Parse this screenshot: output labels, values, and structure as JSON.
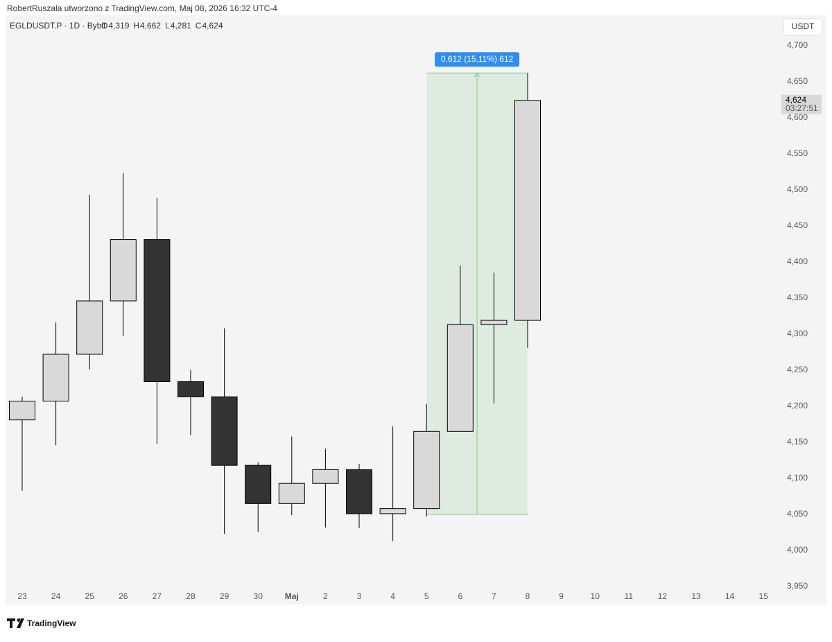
{
  "header": "RobertRuszala utworzono z TradingView.com, Maj 08, 2026 16:32 UTC-4",
  "symbol": "EGLDUSDT.P · 1D · Bybit",
  "ohlc_legend": [
    {
      "key": "O",
      "value": "4,319"
    },
    {
      "key": "H",
      "value": "4,662"
    },
    {
      "key": "L",
      "value": "4,281"
    },
    {
      "key": "C",
      "value": "4,624"
    }
  ],
  "currency": "USDT",
  "last_price_label": "4,624",
  "countdown": "03:27:51",
  "logo": "TradingView",
  "chart_data": {
    "type": "candlestick",
    "categories": [
      "23",
      "24",
      "25",
      "26",
      "27",
      "28",
      "29",
      "30",
      "Maj",
      "2",
      "3",
      "4",
      "5",
      "6",
      "7",
      "8",
      "9",
      "10",
      "11",
      "12",
      "13",
      "14",
      "15"
    ],
    "open": [
      4.181,
      4.207,
      4.272,
      4.346,
      4.431,
      4.234,
      4.213,
      4.118,
      4.065,
      4.093,
      4.112,
      4.051,
      4.058,
      4.165,
      4.313,
      4.319,
      null,
      null,
      null,
      null,
      null,
      null,
      null
    ],
    "high": [
      4.213,
      4.316,
      4.493,
      4.523,
      4.489,
      4.25,
      4.308,
      4.122,
      4.158,
      4.141,
      4.12,
      4.172,
      4.203,
      4.395,
      4.385,
      4.662,
      null,
      null,
      null,
      null,
      null,
      null,
      null
    ],
    "low": [
      4.083,
      4.146,
      4.251,
      4.297,
      4.148,
      4.16,
      4.023,
      4.026,
      4.049,
      4.032,
      4.031,
      4.013,
      4.047,
      4.165,
      4.204,
      4.281,
      null,
      null,
      null,
      null,
      null,
      null,
      null
    ],
    "close": [
      4.207,
      4.272,
      4.346,
      4.431,
      4.234,
      4.213,
      4.118,
      4.065,
      4.093,
      4.112,
      4.051,
      4.058,
      4.165,
      4.313,
      4.319,
      4.624,
      null,
      null,
      null,
      null,
      null,
      null,
      null
    ],
    "up_color": "#d9d9d9",
    "down_color": "#333333",
    "ylim": [
      3.925,
      4.742
    ],
    "yticks": [
      {
        "value": 3.95,
        "label": "3,950"
      },
      {
        "value": 4.0,
        "label": "4,000"
      },
      {
        "value": 4.05,
        "label": "4,050"
      },
      {
        "value": 4.1,
        "label": "4,100"
      },
      {
        "value": 4.15,
        "label": "4,150"
      },
      {
        "value": 4.2,
        "label": "4,200"
      },
      {
        "value": 4.25,
        "label": "4,250"
      },
      {
        "value": 4.3,
        "label": "4,300"
      },
      {
        "value": 4.35,
        "label": "4,350"
      },
      {
        "value": 4.4,
        "label": "4,400"
      },
      {
        "value": 4.45,
        "label": "4,450"
      },
      {
        "value": 4.5,
        "label": "4,500"
      },
      {
        "value": 4.55,
        "label": "4,550"
      },
      {
        "value": 4.6,
        "label": "4,600"
      },
      {
        "value": 4.65,
        "label": "4,650"
      },
      {
        "value": 4.7,
        "label": "4,700"
      }
    ],
    "measure": {
      "label": "0,612 (15,11%) 612",
      "from": 4.05,
      "to": 4.662
    }
  }
}
